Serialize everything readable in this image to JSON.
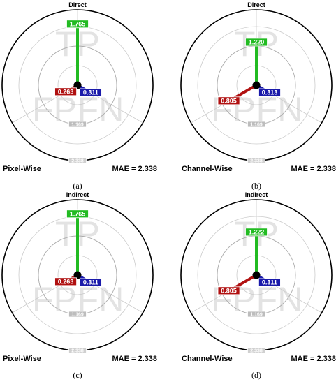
{
  "chart_data": [
    {
      "type": "radial-bar",
      "panel": "(a)",
      "title": "Direct",
      "method": "Pixel-Wise",
      "metric": "MAE = 2.338",
      "watermark": [
        "TP",
        "FP",
        "FN"
      ],
      "ring_ticks": [
        "1.169",
        "2.338"
      ],
      "categories": [
        "TP",
        "FP",
        "FN"
      ],
      "values": [
        1.765,
        0.263,
        0.311
      ],
      "value_labels": [
        "1.765",
        "0.263",
        "0.311"
      ],
      "colors": {
        "TP": "#22bb22",
        "FP": "#b01010",
        "FN": "#1a1aaa"
      }
    },
    {
      "type": "radial-bar",
      "panel": "(b)",
      "title": "Direct",
      "method": "Channel-Wise",
      "metric": "MAE = 2.338",
      "watermark": [
        "TP",
        "FP",
        "FN"
      ],
      "ring_ticks": [
        "1.169",
        "2.338"
      ],
      "categories": [
        "TP",
        "FP",
        "FN"
      ],
      "values": [
        1.22,
        0.805,
        0.313
      ],
      "value_labels": [
        "1.220",
        "0.805",
        "0.313"
      ],
      "colors": {
        "TP": "#22bb22",
        "FP": "#b01010",
        "FN": "#1a1aaa"
      }
    },
    {
      "type": "radial-bar",
      "panel": "(c)",
      "title": "Indirect",
      "method": "Pixel-Wise",
      "metric": "MAE = 2.338",
      "watermark": [
        "TP",
        "FP",
        "FN"
      ],
      "ring_ticks": [
        "1.169",
        "2.338"
      ],
      "categories": [
        "TP",
        "FP",
        "FN"
      ],
      "values": [
        1.765,
        0.263,
        0.311
      ],
      "value_labels": [
        "1.765",
        "0.263",
        "0.311"
      ],
      "colors": {
        "TP": "#22bb22",
        "FP": "#b01010",
        "FN": "#1a1aaa"
      }
    },
    {
      "type": "radial-bar",
      "panel": "(d)",
      "title": "Indirect",
      "method": "Channel-Wise",
      "metric": "MAE = 2.338",
      "watermark": [
        "TP",
        "FP",
        "FN"
      ],
      "ring_ticks": [
        "1.169",
        "2.338"
      ],
      "categories": [
        "TP",
        "FP",
        "FN"
      ],
      "values": [
        1.222,
        0.805,
        0.311
      ],
      "value_labels": [
        "1.222",
        "0.805",
        "0.311"
      ],
      "colors": {
        "TP": "#22bb22",
        "FP": "#b01010",
        "FN": "#1a1aaa"
      }
    }
  ]
}
